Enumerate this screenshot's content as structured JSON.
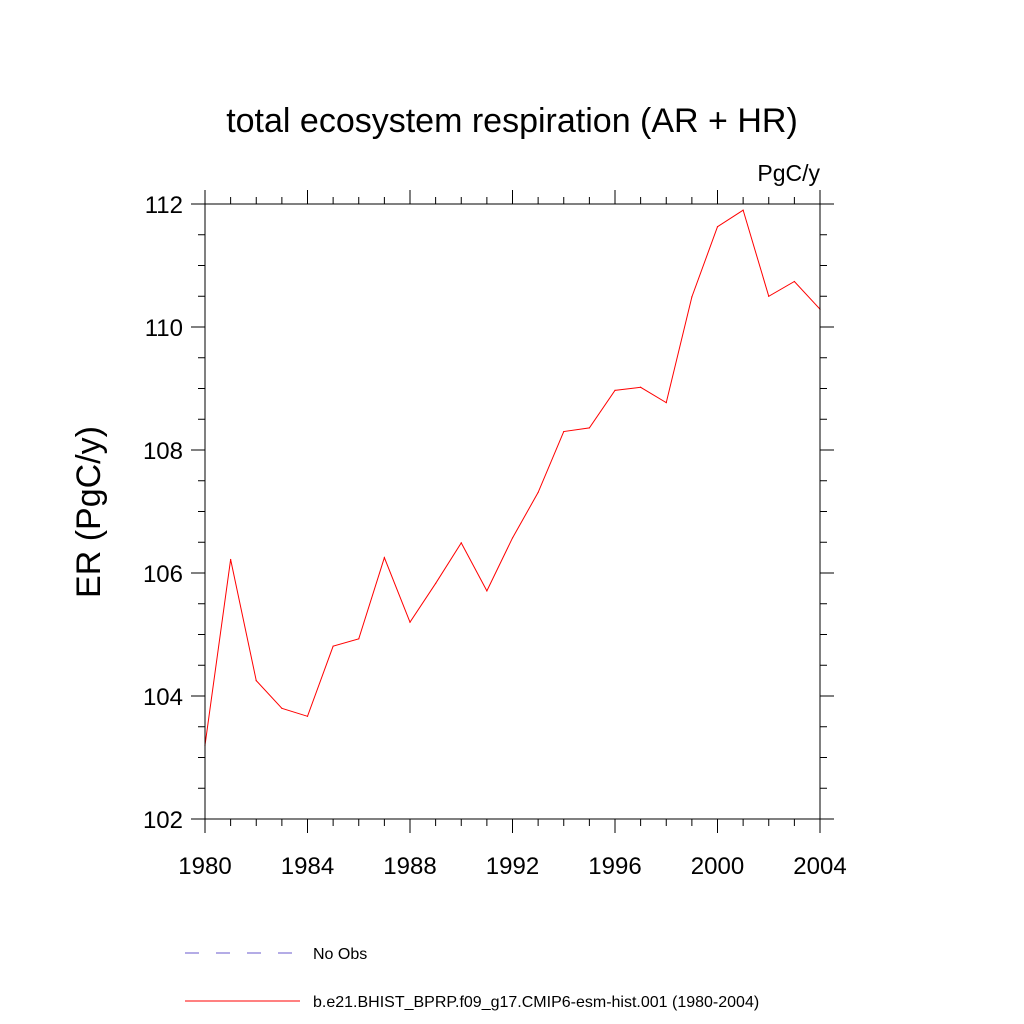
{
  "chart_data": {
    "type": "line",
    "title": "total ecosystem respiration (AR + HR)",
    "units": "PgC/y",
    "xlabel": "",
    "ylabel": "ER  (PgC/y)",
    "xlim": [
      1980,
      2004
    ],
    "ylim": [
      102,
      112
    ],
    "xticks": [
      1980,
      1984,
      1988,
      1992,
      1996,
      2000,
      2004
    ],
    "yticks": [
      102,
      104,
      106,
      108,
      110,
      112
    ],
    "x": [
      1980,
      1981,
      1982,
      1983,
      1984,
      1985,
      1986,
      1987,
      1988,
      1989,
      1990,
      1991,
      1992,
      1993,
      1994,
      1995,
      1996,
      1997,
      1998,
      1999,
      2000,
      2001,
      2002,
      2003,
      2004
    ],
    "series": [
      {
        "name": "b.e21.BHIST_BPRP.f09_g17.CMIP6-esm-hist.001 (1980-2004)",
        "color": "#ff0000",
        "style": "solid",
        "values": [
          103.2,
          106.22,
          104.25,
          103.8,
          103.67,
          104.81,
          104.93,
          106.25,
          105.2,
          105.83,
          106.49,
          105.71,
          106.57,
          107.31,
          108.3,
          108.36,
          108.97,
          109.02,
          108.77,
          110.49,
          111.63,
          111.9,
          110.5,
          110.74,
          110.29
        ]
      }
    ],
    "legend": [
      {
        "label": "No Obs",
        "color": "#6a5acd",
        "style": "dashed"
      },
      {
        "label": "b.e21.BHIST_BPRP.f09_g17.CMIP6-esm-hist.001 (1980-2004)",
        "color": "#ff0000",
        "style": "solid"
      }
    ],
    "legend_position": "bottom"
  }
}
